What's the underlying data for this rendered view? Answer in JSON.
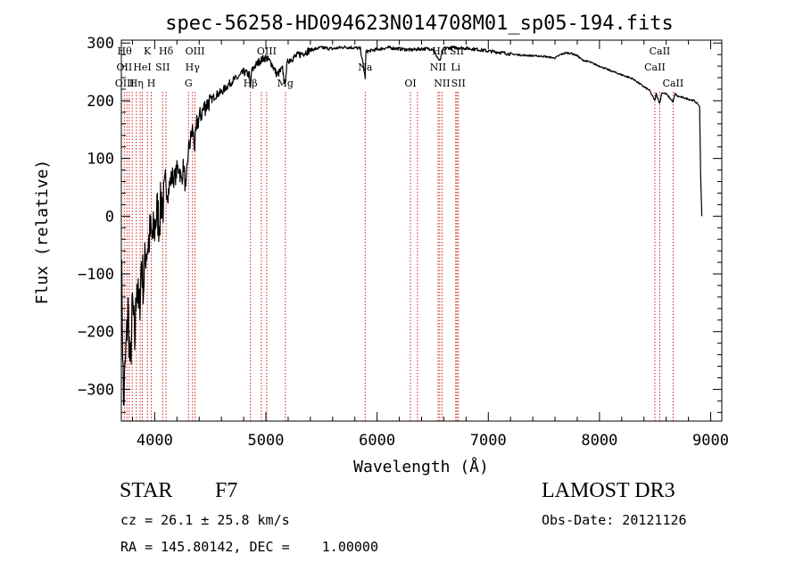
{
  "chart_data": {
    "type": "line",
    "title": "spec-56258-HD094623N014708M01_sp05-194.fits",
    "xlabel": "Wavelength (Å)",
    "ylabel": "Flux (relative)",
    "xlim": [
      3700,
      9100
    ],
    "ylim": [
      -355,
      305
    ],
    "xticks": [
      4000,
      5000,
      6000,
      7000,
      8000,
      9000
    ],
    "yticks": [
      -300,
      -200,
      -100,
      0,
      100,
      200,
      300
    ],
    "grid": false,
    "legend": "none",
    "series": [
      {
        "color": "#000000",
        "x": [
          3700,
          3720,
          3740,
          3760,
          3780,
          3800,
          3820,
          3840,
          3860,
          3880,
          3900,
          3920,
          3940,
          3960,
          3980,
          4000,
          4020,
          4040,
          4060,
          4080,
          4100,
          4120,
          4140,
          4160,
          4180,
          4200,
          4220,
          4240,
          4260,
          4280,
          4300,
          4320,
          4340,
          4360,
          4380,
          4400,
          4450,
          4500,
          4550,
          4600,
          4650,
          4700,
          4750,
          4800,
          4850,
          4861,
          4870,
          4900,
          4950,
          5000,
          5050,
          5100,
          5150,
          5172,
          5180,
          5200,
          5300,
          5400,
          5500,
          5600,
          5700,
          5800,
          5850,
          5893,
          5900,
          5950,
          6000,
          6100,
          6200,
          6300,
          6400,
          6500,
          6563,
          6600,
          6700,
          6800,
          6900,
          7000,
          7100,
          7200,
          7300,
          7400,
          7500,
          7600,
          7650,
          7700,
          7750,
          7800,
          7850,
          7900,
          8000,
          8100,
          8200,
          8300,
          8400,
          8450,
          8498,
          8510,
          8542,
          8560,
          8600,
          8662,
          8680,
          8700,
          8800,
          8850,
          8880,
          8900,
          8910,
          8920
        ],
        "y": [
          -60,
          -330,
          -240,
          -160,
          -270,
          -150,
          -220,
          -100,
          -180,
          -80,
          -120,
          -60,
          -50,
          -30,
          -40,
          -20,
          10,
          -10,
          30,
          20,
          50,
          40,
          60,
          70,
          65,
          80,
          85,
          60,
          90,
          40,
          110,
          130,
          150,
          120,
          160,
          170,
          190,
          200,
          210,
          215,
          225,
          235,
          240,
          250,
          245,
          220,
          250,
          260,
          270,
          275,
          265,
          245,
          255,
          225,
          250,
          270,
          280,
          288,
          292,
          290,
          293,
          292,
          290,
          240,
          285,
          287,
          289,
          292,
          290,
          288,
          290,
          290,
          268,
          291,
          292,
          291,
          289,
          286,
          284,
          281,
          279,
          278,
          277,
          274,
          280,
          283,
          282,
          278,
          270,
          268,
          260,
          252,
          245,
          238,
          224,
          218,
          200,
          212,
          195,
          214,
          212,
          198,
          212,
          208,
          203,
          200,
          195,
          190,
          70,
          0
        ]
      }
    ],
    "line_labels": [
      {
        "x": 3729,
        "row": 0,
        "text": "Hθ"
      },
      {
        "x": 3727,
        "row": 1,
        "text": "OII"
      },
      {
        "x": 3730,
        "row": 2,
        "text": "OIII"
      },
      {
        "x": 3835,
        "row": 2,
        "text": "Hη"
      },
      {
        "x": 3889,
        "row": 1,
        "text": "HeI"
      },
      {
        "x": 3934,
        "row": 0,
        "text": "K"
      },
      {
        "x": 3969,
        "row": 2,
        "text": "H"
      },
      {
        "x": 4072,
        "row": 1,
        "text": "SII"
      },
      {
        "x": 4102,
        "row": 0,
        "text": "Hδ"
      },
      {
        "x": 4363,
        "row": 0,
        "text": "OIII"
      },
      {
        "x": 4340,
        "row": 1,
        "text": "Hγ"
      },
      {
        "x": 4304,
        "row": 2,
        "text": "G"
      },
      {
        "x": 4861,
        "row": 2,
        "text": "Hβ"
      },
      {
        "x": 5007,
        "row": 0,
        "text": "OIII"
      },
      {
        "x": 5175,
        "row": 2,
        "text": "Mg"
      },
      {
        "x": 5893,
        "row": 1,
        "text": "Na"
      },
      {
        "x": 6300,
        "row": 2,
        "text": "OI"
      },
      {
        "x": 6563,
        "row": 0,
        "text": "Hα"
      },
      {
        "x": 6548,
        "row": 1,
        "text": "NII"
      },
      {
        "x": 6584,
        "row": 2,
        "text": "NII"
      },
      {
        "x": 6707,
        "row": 1,
        "text": "Li"
      },
      {
        "x": 6717,
        "row": 0,
        "text": "SII"
      },
      {
        "x": 6731,
        "row": 2,
        "text": "SII"
      },
      {
        "x": 8498,
        "row": 1,
        "text": "CaII"
      },
      {
        "x": 8542,
        "row": 0,
        "text": "CaII"
      },
      {
        "x": 8662,
        "row": 2,
        "text": "CaII"
      }
    ],
    "marker_lines": [
      3727,
      3750,
      3771,
      3798,
      3835,
      3869,
      3889,
      3934,
      3969,
      4072,
      4102,
      4304,
      4340,
      4363,
      4861,
      4959,
      5007,
      5175,
      5893,
      6300,
      6363,
      6548,
      6563,
      6584,
      6707,
      6717,
      6731,
      8498,
      8542,
      8662
    ]
  },
  "footer": {
    "object_type": "STAR",
    "subclass": "F7",
    "survey": "LAMOST DR3",
    "cz": "cz = 26.1 ± 25.8 km/s",
    "obs_date": "Obs-Date: 20121126",
    "coords": "RA = 145.80142, DEC =    1.00000"
  }
}
